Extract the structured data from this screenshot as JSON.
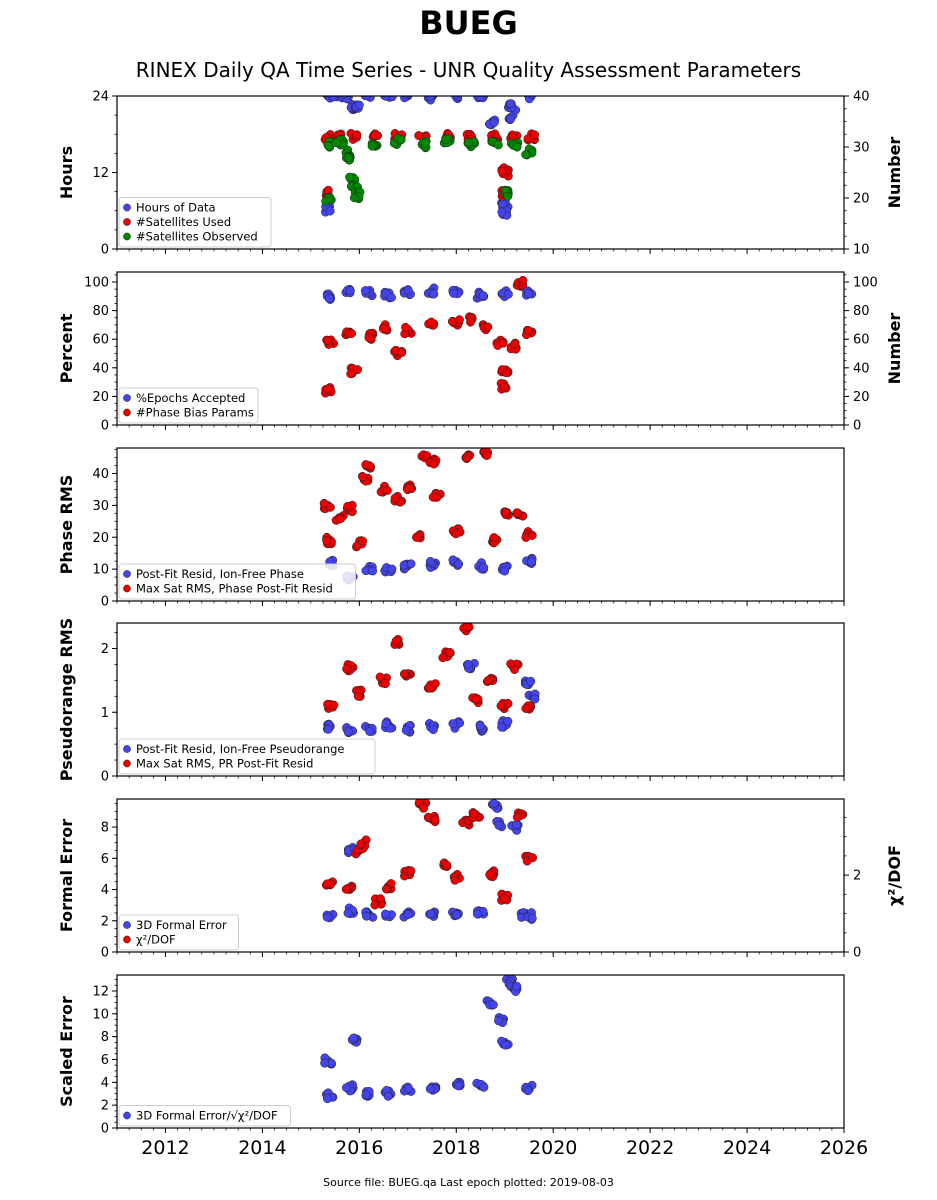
{
  "title": "BUEG",
  "subtitle": "RINEX Daily QA Time Series - UNR Quality Assessment Parameters",
  "footer": "Source file: BUEG.qa Last epoch plotted: 2019-08-03",
  "colors": {
    "blue": "#4444ee",
    "red": "#ee0000",
    "green": "#008800",
    "edge": "#222222"
  },
  "chart_data": [
    {
      "type": "scatter",
      "ylabel": "Hours",
      "ylabel_right": "Number",
      "ylim": [
        0,
        24
      ],
      "yticks": [
        0,
        12,
        24
      ],
      "ylim_right": [
        10,
        40
      ],
      "yticks_right": [
        10,
        20,
        30,
        40
      ],
      "xlim": [
        2011.0,
        2026.0
      ],
      "legend": "bottom-left",
      "series": [
        {
          "name": "Hours of Data",
          "color": "#4444ee",
          "axis": "left",
          "points": [
            [
              2015.35,
              24
            ],
            [
              2015.5,
              24
            ],
            [
              2015.7,
              23.9
            ],
            [
              2015.85,
              22.3
            ],
            [
              2015.95,
              22.6
            ],
            [
              2016.2,
              24
            ],
            [
              2016.6,
              23.9
            ],
            [
              2017.0,
              24
            ],
            [
              2017.5,
              23.9
            ],
            [
              2018.0,
              24
            ],
            [
              2018.5,
              23.9
            ],
            [
              2018.75,
              20
            ],
            [
              2019.0,
              6.8
            ],
            [
              2019.0,
              5.8
            ],
            [
              2019.1,
              20.5
            ],
            [
              2019.15,
              22.3
            ],
            [
              2019.5,
              24
            ],
            [
              2015.35,
              6.2
            ]
          ]
        },
        {
          "name": "#Satellites Used",
          "color": "#ee0000",
          "axis": "right",
          "points": [
            [
              2015.35,
              32
            ],
            [
              2015.6,
              32
            ],
            [
              2015.9,
              32
            ],
            [
              2016.3,
              32
            ],
            [
              2016.8,
              32
            ],
            [
              2017.3,
              32
            ],
            [
              2017.8,
              32
            ],
            [
              2018.3,
              32
            ],
            [
              2018.8,
              32
            ],
            [
              2019.2,
              32
            ],
            [
              2019.55,
              32
            ],
            [
              2015.35,
              21
            ],
            [
              2019.0,
              25.5
            ],
            [
              2019.0,
              24.8
            ],
            [
              2019.0,
              21
            ]
          ]
        },
        {
          "name": "#Satellites Observed",
          "color": "#008800",
          "axis": "right",
          "points": [
            [
              2015.35,
              30.5
            ],
            [
              2015.6,
              31
            ],
            [
              2015.75,
              29
            ],
            [
              2015.8,
              27.5
            ],
            [
              2015.85,
              24
            ],
            [
              2015.9,
              22
            ],
            [
              2015.95,
              20.5
            ],
            [
              2016.3,
              30.5
            ],
            [
              2016.8,
              31
            ],
            [
              2017.3,
              30.5
            ],
            [
              2017.8,
              31
            ],
            [
              2018.3,
              30.5
            ],
            [
              2018.8,
              31
            ],
            [
              2019.2,
              30.5
            ],
            [
              2019.5,
              29
            ],
            [
              2015.35,
              20
            ],
            [
              2019.0,
              21
            ]
          ]
        }
      ]
    },
    {
      "type": "scatter",
      "ylabel": "Percent",
      "ylabel_right": "Number",
      "ylim": [
        0,
        107
      ],
      "yticks": [
        0,
        20,
        40,
        60,
        80,
        100
      ],
      "ylim_right": [
        0,
        107
      ],
      "yticks_right": [
        0,
        20,
        40,
        60,
        80,
        100
      ],
      "xlim": [
        2011.0,
        2026.0
      ],
      "legend": "bottom-left",
      "series": [
        {
          "name": "%Epochs Accepted",
          "color": "#4444ee",
          "axis": "left",
          "points": [
            [
              2015.4,
              90
            ],
            [
              2015.8,
              94
            ],
            [
              2016.2,
              92
            ],
            [
              2016.6,
              91
            ],
            [
              2017.0,
              93
            ],
            [
              2017.5,
              94
            ],
            [
              2018.0,
              93
            ],
            [
              2018.5,
              91
            ],
            [
              2019.0,
              92
            ],
            [
              2019.5,
              93
            ]
          ]
        },
        {
          "name": "#Phase Bias Params",
          "color": "#ee0000",
          "axis": "left",
          "points": [
            [
              2015.35,
              24
            ],
            [
              2015.4,
              58
            ],
            [
              2015.8,
              65
            ],
            [
              2015.9,
              38
            ],
            [
              2016.2,
              62
            ],
            [
              2016.5,
              68
            ],
            [
              2016.8,
              50
            ],
            [
              2017.0,
              66
            ],
            [
              2017.5,
              70
            ],
            [
              2018.0,
              72
            ],
            [
              2018.3,
              74
            ],
            [
              2018.6,
              68
            ],
            [
              2018.9,
              58
            ],
            [
              2019.0,
              37
            ],
            [
              2019.0,
              27
            ],
            [
              2019.2,
              55
            ],
            [
              2019.3,
              99
            ],
            [
              2019.5,
              65
            ]
          ]
        }
      ]
    },
    {
      "type": "scatter",
      "ylabel": "Phase RMS",
      "ylim": [
        0,
        48
      ],
      "yticks": [
        0,
        10,
        20,
        30,
        40
      ],
      "xlim": [
        2011.0,
        2026.0
      ],
      "legend": "bottom-left",
      "series": [
        {
          "name": "Post-Fit Resid, Ion-Free Phase",
          "color": "#4444ee",
          "axis": "left",
          "points": [
            [
              2015.4,
              12
            ],
            [
              2015.8,
              7
            ],
            [
              2016.2,
              10
            ],
            [
              2016.6,
              9.5
            ],
            [
              2017.0,
              11
            ],
            [
              2017.5,
              11.5
            ],
            [
              2018.0,
              12
            ],
            [
              2018.5,
              11
            ],
            [
              2019.0,
              10
            ],
            [
              2019.5,
              12.5
            ]
          ]
        },
        {
          "name": "Max Sat RMS, Phase Post-Fit Resid",
          "color": "#ee0000",
          "axis": "left",
          "points": [
            [
              2015.35,
              30
            ],
            [
              2015.4,
              19
            ],
            [
              2015.6,
              26
            ],
            [
              2015.8,
              29
            ],
            [
              2016.0,
              18
            ],
            [
              2016.1,
              38
            ],
            [
              2016.2,
              42.5
            ],
            [
              2016.5,
              35
            ],
            [
              2016.8,
              32
            ],
            [
              2017.0,
              36
            ],
            [
              2017.2,
              20
            ],
            [
              2017.35,
              45
            ],
            [
              2017.5,
              44
            ],
            [
              2017.6,
              33
            ],
            [
              2018.0,
              22
            ],
            [
              2018.2,
              45
            ],
            [
              2018.6,
              46
            ],
            [
              2018.8,
              19
            ],
            [
              2019.0,
              28
            ],
            [
              2019.3,
              27
            ],
            [
              2019.5,
              21
            ]
          ]
        }
      ]
    },
    {
      "type": "scatter",
      "ylabel": "Pseudorange RMS",
      "ylim": [
        0,
        2.4
      ],
      "yticks": [
        0,
        1,
        2
      ],
      "xlim": [
        2011.0,
        2026.0
      ],
      "legend": "bottom-left",
      "series": [
        {
          "name": "Post-Fit Resid, Ion-Free Pseudorange",
          "color": "#4444ee",
          "axis": "left",
          "points": [
            [
              2015.4,
              0.78
            ],
            [
              2015.8,
              0.72
            ],
            [
              2016.2,
              0.75
            ],
            [
              2016.6,
              0.8
            ],
            [
              2017.0,
              0.74
            ],
            [
              2017.5,
              0.77
            ],
            [
              2018.0,
              0.8
            ],
            [
              2018.3,
              1.72
            ],
            [
              2018.5,
              0.75
            ],
            [
              2019.0,
              0.82
            ],
            [
              2019.5,
              1.45
            ],
            [
              2019.55,
              1.25
            ]
          ]
        },
        {
          "name": "Max Sat RMS, PR Post-Fit Resid",
          "color": "#ee0000",
          "axis": "left",
          "points": [
            [
              2015.4,
              1.1
            ],
            [
              2015.8,
              1.7
            ],
            [
              2016.0,
              1.3
            ],
            [
              2016.5,
              1.5
            ],
            [
              2016.8,
              2.1
            ],
            [
              2017.0,
              1.6
            ],
            [
              2017.5,
              1.4
            ],
            [
              2017.8,
              1.9
            ],
            [
              2018.2,
              2.3
            ],
            [
              2018.4,
              1.2
            ],
            [
              2018.7,
              1.5
            ],
            [
              2019.0,
              1.1
            ],
            [
              2019.2,
              1.72
            ],
            [
              2019.5,
              1.1
            ]
          ]
        }
      ]
    },
    {
      "type": "scatter",
      "ylabel": "Formal Error",
      "ylabel_right": "χ²/DOF",
      "ylim": [
        0,
        9.8
      ],
      "yticks": [
        0,
        2,
        4,
        6,
        8
      ],
      "ylim_right": [
        0,
        3.98
      ],
      "yticks_right": [
        0,
        2
      ],
      "xlim": [
        2011.0,
        2026.0
      ],
      "legend": "bottom-left",
      "series": [
        {
          "name": "3D Formal Error",
          "color": "#4444ee",
          "axis": "left",
          "points": [
            [
              2015.4,
              2.3
            ],
            [
              2015.8,
              2.6
            ],
            [
              2015.85,
              6.5
            ],
            [
              2016.2,
              2.4
            ],
            [
              2016.6,
              2.3
            ],
            [
              2017.0,
              2.4
            ],
            [
              2017.5,
              2.4
            ],
            [
              2018.0,
              2.5
            ],
            [
              2018.5,
              2.6
            ],
            [
              2018.8,
              9.4
            ],
            [
              2018.9,
              8.2
            ],
            [
              2019.2,
              8
            ],
            [
              2019.4,
              2.4
            ],
            [
              2019.55,
              2.3
            ]
          ]
        },
        {
          "name": "χ²/DOF",
          "color": "#ee0000",
          "axis": "left",
          "points": [
            [
              2015.4,
              4.3
            ],
            [
              2015.8,
              4
            ],
            [
              2016.0,
              6.5
            ],
            [
              2016.1,
              7
            ],
            [
              2016.4,
              3.2
            ],
            [
              2016.6,
              4.2
            ],
            [
              2017.0,
              5
            ],
            [
              2017.3,
              9.4
            ],
            [
              2017.5,
              8.5
            ],
            [
              2017.8,
              5.5
            ],
            [
              2018.0,
              4.8
            ],
            [
              2018.2,
              8.3
            ],
            [
              2018.4,
              8.8
            ],
            [
              2018.7,
              5
            ],
            [
              2019.0,
              3.5
            ],
            [
              2019.3,
              8.7
            ],
            [
              2019.5,
              6
            ]
          ]
        }
      ]
    },
    {
      "type": "scatter",
      "ylabel": "Scaled Error",
      "ylim": [
        0,
        13.4
      ],
      "yticks": [
        0,
        2,
        4,
        6,
        8,
        10,
        12
      ],
      "xlim": [
        2011.0,
        2026.0
      ],
      "xticks": [
        2012,
        2014,
        2016,
        2018,
        2020,
        2022,
        2024,
        2026
      ],
      "legend": "bottom-left",
      "series": [
        {
          "name": "3D Formal Error/√χ²/DOF",
          "color": "#4444ee",
          "axis": "left",
          "points": [
            [
              2015.35,
              5.9
            ],
            [
              2015.4,
              2.8
            ],
            [
              2015.8,
              3.5
            ],
            [
              2015.9,
              7.6
            ],
            [
              2016.2,
              2.9
            ],
            [
              2016.6,
              3
            ],
            [
              2017.0,
              3.3
            ],
            [
              2017.5,
              3.6
            ],
            [
              2018.0,
              3.8
            ],
            [
              2018.5,
              3.7
            ],
            [
              2018.7,
              11
            ],
            [
              2018.9,
              9.5
            ],
            [
              2019.0,
              7.5
            ],
            [
              2019.1,
              12.8
            ],
            [
              2019.2,
              12.2
            ],
            [
              2019.5,
              3.5
            ]
          ]
        }
      ]
    }
  ]
}
